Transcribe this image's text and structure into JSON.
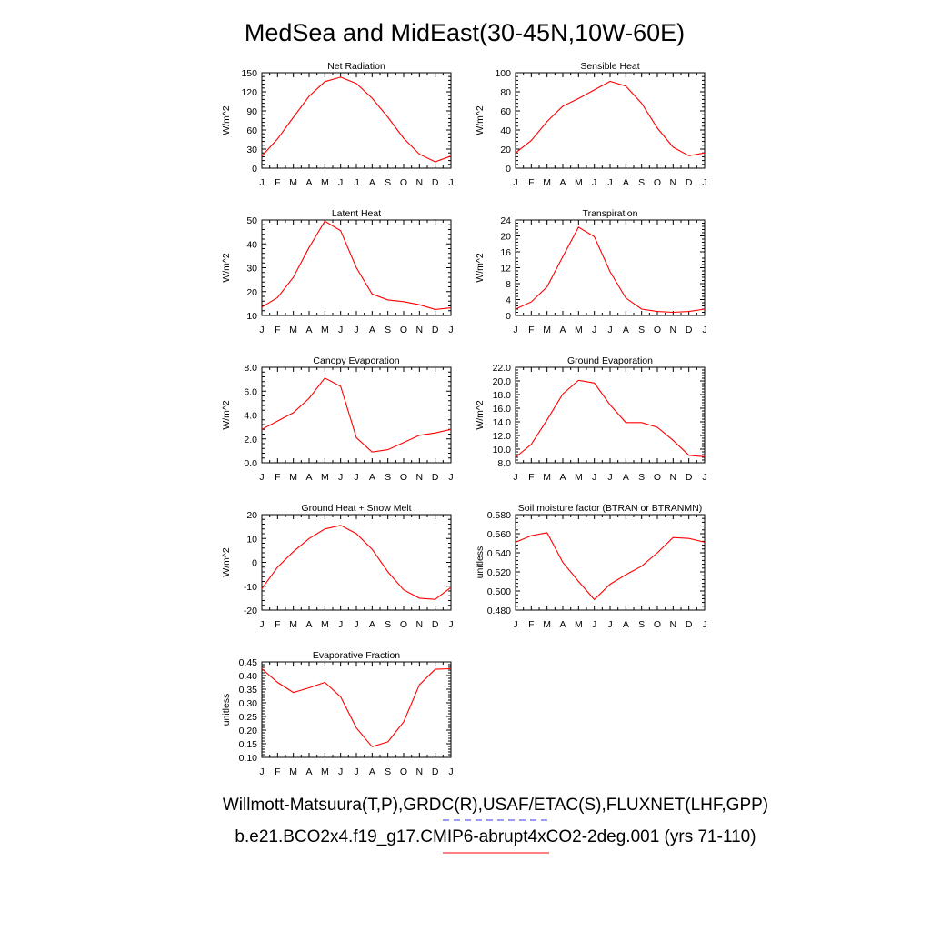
{
  "title": "MedSea and MidEast(30-45N,10W-60E)",
  "months": [
    "J",
    "F",
    "M",
    "A",
    "M",
    "J",
    "J",
    "A",
    "S",
    "O",
    "N",
    "D",
    "J"
  ],
  "legend": {
    "line1": "Willmott-Matsuura(T,P),GRDC(R),USAF/ETAC(S),FLUXNET(LHF,GPP)",
    "line1_color": "#3333ff",
    "line2": "b.e21.BCO2x4.f19_g17.CMIP6-abrupt4xCO2-2deg.001 (yrs 71-110)",
    "line2_color": "#ff0000"
  },
  "chart_data": [
    {
      "type": "line",
      "title": "Net Radiation",
      "ylabel": "W/m^2",
      "ylim": [
        0,
        150
      ],
      "yticks": [
        "0",
        "30",
        "60",
        "90",
        "120",
        "150"
      ],
      "series": [
        {
          "values": [
            19,
            46,
            80,
            113,
            136,
            143,
            133,
            110,
            80,
            47,
            22,
            10,
            19
          ],
          "color": "#ff0000"
        }
      ]
    },
    {
      "type": "line",
      "title": "Sensible Heat",
      "ylabel": "W/m^2",
      "ylim": [
        0,
        100
      ],
      "yticks": [
        "0",
        "20",
        "40",
        "60",
        "80",
        "100"
      ],
      "series": [
        {
          "values": [
            16,
            29,
            49,
            65,
            73,
            82,
            91,
            86,
            68,
            42,
            22,
            13,
            16
          ],
          "color": "#ff0000"
        }
      ]
    },
    {
      "type": "line",
      "title": "Latent Heat",
      "ylabel": "W/m^2",
      "ylim": [
        10,
        50
      ],
      "yticks": [
        "10",
        "20",
        "30",
        "40",
        "50"
      ],
      "series": [
        {
          "values": [
            13.5,
            17.5,
            26,
            38.5,
            49.5,
            45.5,
            30,
            19,
            16.5,
            15.8,
            14.5,
            12.5,
            13.2
          ],
          "color": "#ff0000"
        }
      ]
    },
    {
      "type": "line",
      "title": "Transpiration",
      "ylabel": "W/m^2",
      "ylim": [
        0,
        24
      ],
      "yticks": [
        "0",
        "4",
        "8",
        "12",
        "16",
        "20",
        "24"
      ],
      "series": [
        {
          "values": [
            1.6,
            3.4,
            7.2,
            14.8,
            22.2,
            19.8,
            11,
            4.4,
            1.6,
            1.0,
            0.8,
            1.0,
            1.6
          ],
          "color": "#ff0000"
        }
      ]
    },
    {
      "type": "line",
      "title": "Canopy Evaporation",
      "ylabel": "W/m^2",
      "ylim": [
        0,
        8
      ],
      "yticks": [
        "0.0",
        "2.0",
        "4.0",
        "6.0",
        "8.0"
      ],
      "series": [
        {
          "values": [
            2.8,
            3.5,
            4.2,
            5.4,
            7.1,
            6.4,
            2.1,
            0.9,
            1.1,
            1.7,
            2.3,
            2.5,
            2.8
          ],
          "color": "#ff0000"
        }
      ]
    },
    {
      "type": "line",
      "title": "Ground Evaporation",
      "ylabel": "W/m^2",
      "ylim": [
        8,
        22
      ],
      "yticks": [
        "8.0",
        "10.0",
        "12.0",
        "14.0",
        "16.0",
        "18.0",
        "20.0",
        "22.0"
      ],
      "series": [
        {
          "values": [
            8.8,
            10.7,
            14.3,
            18.1,
            20.1,
            19.7,
            16.5,
            13.9,
            13.9,
            13.2,
            11.3,
            9.1,
            8.9
          ],
          "color": "#ff0000"
        }
      ]
    },
    {
      "type": "line",
      "title": "Ground Heat + Snow Melt",
      "ylabel": "W/m^2",
      "ylim": [
        -20,
        20
      ],
      "yticks": [
        "-20",
        "-10",
        "0",
        "10",
        "20"
      ],
      "series": [
        {
          "values": [
            -11,
            -2,
            4.5,
            10,
            14,
            15.5,
            12,
            5.5,
            -4,
            -11.5,
            -15,
            -15.5,
            -10.5
          ],
          "color": "#ff0000"
        }
      ]
    },
    {
      "type": "line",
      "title": "Soil moisture factor (BTRAN or BTRANMN)",
      "ylabel": "unitless",
      "ylim": [
        0.48,
        0.58
      ],
      "yticks": [
        "0.480",
        "0.500",
        "0.520",
        "0.540",
        "0.560",
        "0.580"
      ],
      "series": [
        {
          "values": [
            0.551,
            0.558,
            0.561,
            0.53,
            0.51,
            0.491,
            0.507,
            0.517,
            0.526,
            0.54,
            0.556,
            0.555,
            0.551
          ],
          "color": "#ff0000"
        }
      ]
    },
    {
      "type": "line",
      "title": "Evaporative Fraction",
      "ylabel": "unitless",
      "ylim": [
        0.1,
        0.45
      ],
      "yticks": [
        "0.10",
        "0.15",
        "0.20",
        "0.25",
        "0.30",
        "0.35",
        "0.40",
        "0.45"
      ],
      "series": [
        {
          "values": [
            0.425,
            0.375,
            0.338,
            0.355,
            0.375,
            0.322,
            0.208,
            0.139,
            0.157,
            0.23,
            0.366,
            0.423,
            0.425
          ],
          "color": "#ff0000"
        }
      ]
    }
  ]
}
